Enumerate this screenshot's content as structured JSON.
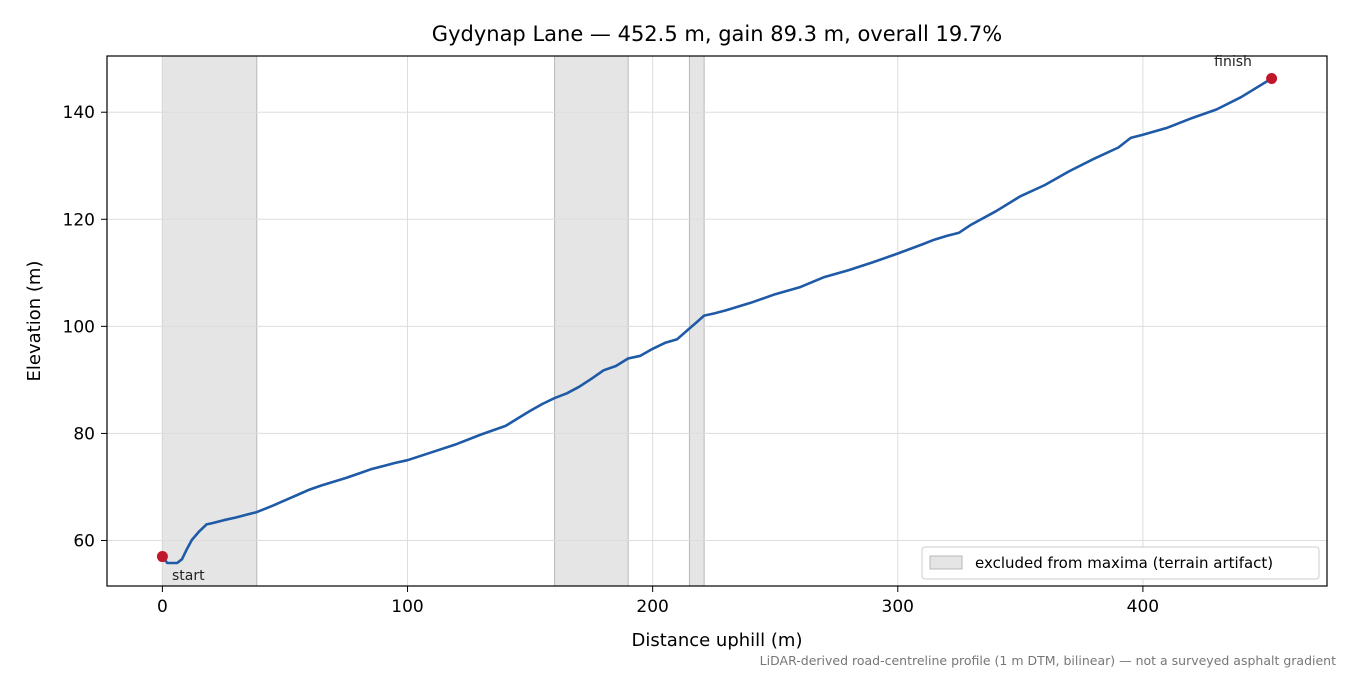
{
  "chart_data": {
    "type": "line",
    "title": "Gydynap Lane — 452.5 m, gain 89.3 m, overall 19.7%",
    "xlabel": "Distance uphill (m)",
    "ylabel": "Elevation (m)",
    "xlim": [
      -22.6,
      475.1
    ],
    "ylim": [
      51.5,
      150.5
    ],
    "xticks": [
      0,
      100,
      200,
      300,
      400
    ],
    "yticks": [
      60,
      80,
      100,
      120,
      140
    ],
    "grid": true,
    "line_color": "#1f5aa6",
    "marker_color": "#c0182a",
    "band_color": "#cfcfcf",
    "excluded_ranges": [
      [
        0,
        38.5
      ],
      [
        160,
        190
      ],
      [
        215,
        221
      ]
    ],
    "legend": {
      "label": "excluded from maxima (terrain artifact)",
      "placement": "lower right"
    },
    "series": [
      {
        "x": [
          0,
          2,
          4,
          6,
          8,
          10,
          12,
          15,
          18,
          20,
          25,
          30,
          35,
          38.5,
          45,
          50,
          55,
          60,
          65,
          70,
          75,
          80,
          85,
          90,
          95,
          100,
          110,
          120,
          130,
          140,
          145,
          150,
          155,
          160,
          165,
          170,
          175,
          180,
          185,
          190,
          195,
          200,
          205,
          210,
          215,
          218,
          221,
          225,
          230,
          240,
          250,
          260,
          270,
          280,
          290,
          300,
          310,
          315,
          320,
          325,
          330,
          340,
          350,
          360,
          370,
          380,
          390,
          395,
          400,
          410,
          420,
          430,
          440,
          452.5
        ],
        "y": [
          57,
          55.8,
          55.8,
          55.8,
          56.5,
          58.4,
          60.1,
          61.7,
          63,
          63.2,
          63.8,
          64.3,
          64.9,
          65.3,
          66.5,
          67.5,
          68.5,
          69.5,
          70.3,
          71,
          71.7,
          72.5,
          73.3,
          73.9,
          74.5,
          75,
          76.5,
          78,
          79.8,
          81.4,
          82.8,
          84.2,
          85.5,
          86.6,
          87.5,
          88.7,
          90.2,
          91.8,
          92.6,
          94,
          94.5,
          95.8,
          96.9,
          97.6,
          99.6,
          100.8,
          102,
          102.4,
          103,
          104.4,
          106,
          107.3,
          109.2,
          110.5,
          112,
          113.6,
          115.3,
          116.2,
          116.9,
          117.5,
          119,
          121.5,
          124.3,
          126.4,
          129,
          131.3,
          133.4,
          135.2,
          135.8,
          137.1,
          138.9,
          140.5,
          142.8,
          146.3
        ]
      }
    ],
    "annotations": {
      "start": {
        "label": "start",
        "x": 0,
        "y": 57
      },
      "finish": {
        "label": "finish",
        "x": 452.5,
        "y": 146.3
      }
    },
    "footnote": "LiDAR-derived road-centreline profile (1 m DTM, bilinear) — not a surveyed asphalt gradient"
  }
}
